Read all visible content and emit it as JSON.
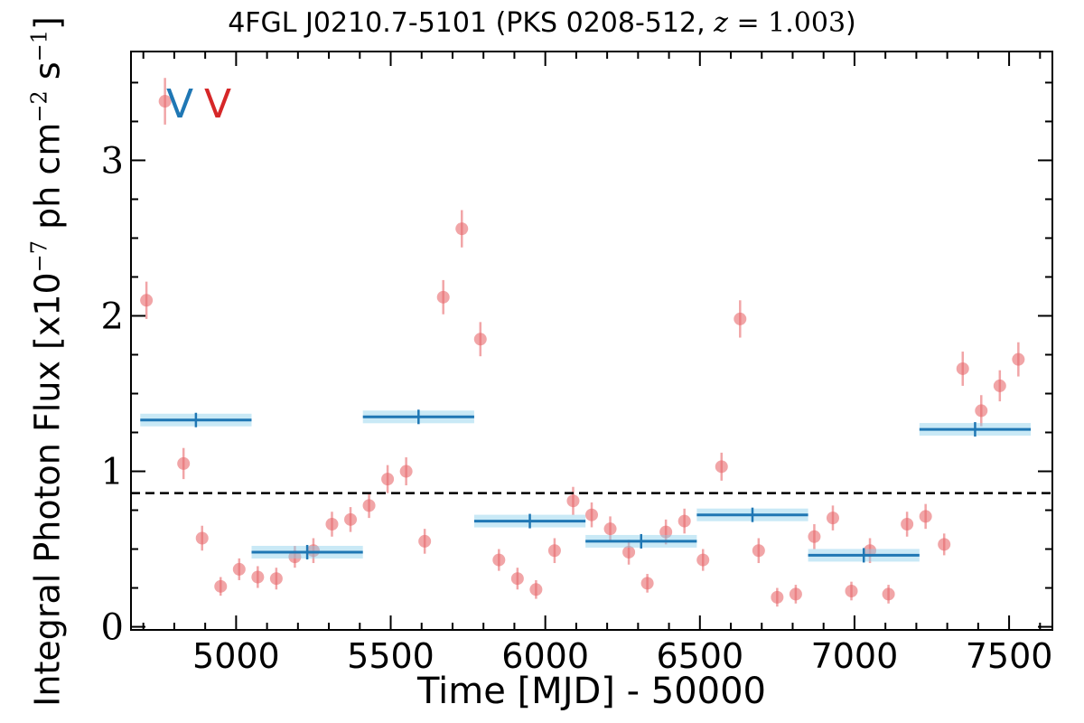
{
  "title": {
    "source": "4FGL J0210.7-5101 (PKS 0208-512, ",
    "z_symbol": "z",
    "z_eq": " = 1.003",
    "close": ")"
  },
  "markers": {
    "blue_label": "V",
    "red_label": "V",
    "blue_color": "#1f77b4",
    "red_color": "#d62728"
  },
  "colors": {
    "points": "#e8696d",
    "binned": "#1f77b4",
    "binned_band": "#87ceeb",
    "mean_line": "#000000"
  },
  "chart_data": {
    "type": "scatter",
    "xlabel": "Time [MJD] - 50000",
    "ylabel_prefix": "Integral Photon Flux [x10",
    "ylabel_exp1": "−7",
    "ylabel_mid": " ph cm",
    "ylabel_exp2": "−2",
    "ylabel_mid2": " s",
    "ylabel_exp3": "−1",
    "ylabel_suffix": "]",
    "xlim": [
      4660,
      7640
    ],
    "ylim": [
      -0.02,
      3.7
    ],
    "xticks": [
      5000,
      5500,
      6000,
      6500,
      7000,
      7500
    ],
    "yticks": [
      0,
      1,
      2,
      3
    ],
    "mean_flux": 0.86,
    "series": [
      {
        "kind": "points_with_errors",
        "x": [
          4710,
          4770,
          4830,
          4890,
          4950,
          5010,
          5070,
          5130,
          5190,
          5250,
          5310,
          5370,
          5430,
          5490,
          5550,
          5610,
          5670,
          5730,
          5790,
          5850,
          5910,
          5970,
          6030,
          6090,
          6150,
          6210,
          6270,
          6330,
          6390,
          6450,
          6510,
          6570,
          6630,
          6690,
          6750,
          6810,
          6870,
          6930,
          6990,
          7050,
          7110,
          7170,
          7230,
          7290,
          7350,
          7410,
          7470,
          7530
        ],
        "y": [
          2.1,
          3.38,
          1.05,
          0.57,
          0.26,
          0.37,
          0.32,
          0.31,
          0.45,
          0.49,
          0.66,
          0.69,
          0.78,
          0.95,
          1.0,
          0.55,
          2.12,
          2.56,
          1.85,
          0.43,
          0.31,
          0.24,
          0.49,
          0.81,
          0.72,
          0.63,
          0.48,
          0.28,
          0.61,
          0.68,
          0.43,
          1.03,
          1.98,
          0.49,
          0.19,
          0.21,
          0.58,
          0.7,
          0.23,
          0.49,
          0.21,
          0.66,
          0.71,
          0.53,
          1.66,
          1.39,
          1.55,
          1.72
        ],
        "yerr": [
          0.12,
          0.15,
          0.1,
          0.08,
          0.06,
          0.07,
          0.07,
          0.07,
          0.07,
          0.08,
          0.08,
          0.08,
          0.08,
          0.09,
          0.09,
          0.08,
          0.11,
          0.12,
          0.11,
          0.07,
          0.07,
          0.06,
          0.08,
          0.09,
          0.08,
          0.08,
          0.08,
          0.06,
          0.08,
          0.08,
          0.07,
          0.09,
          0.12,
          0.08,
          0.06,
          0.06,
          0.08,
          0.08,
          0.06,
          0.08,
          0.06,
          0.08,
          0.08,
          0.07,
          0.11,
          0.1,
          0.1,
          0.11
        ]
      },
      {
        "kind": "binned",
        "x_start": [
          4690,
          5050,
          5410,
          5770,
          6130,
          6490,
          6850,
          7210
        ],
        "x_end": [
          5050,
          5410,
          5770,
          6130,
          6490,
          6850,
          7210,
          7570
        ],
        "x_center": [
          4870,
          5230,
          5590,
          5950,
          6310,
          6670,
          7030,
          7390
        ],
        "y": [
          1.33,
          0.48,
          1.35,
          0.68,
          0.55,
          0.72,
          0.46,
          1.27
        ],
        "yerr": [
          0.03,
          0.02,
          0.03,
          0.02,
          0.02,
          0.02,
          0.02,
          0.03
        ]
      }
    ]
  }
}
